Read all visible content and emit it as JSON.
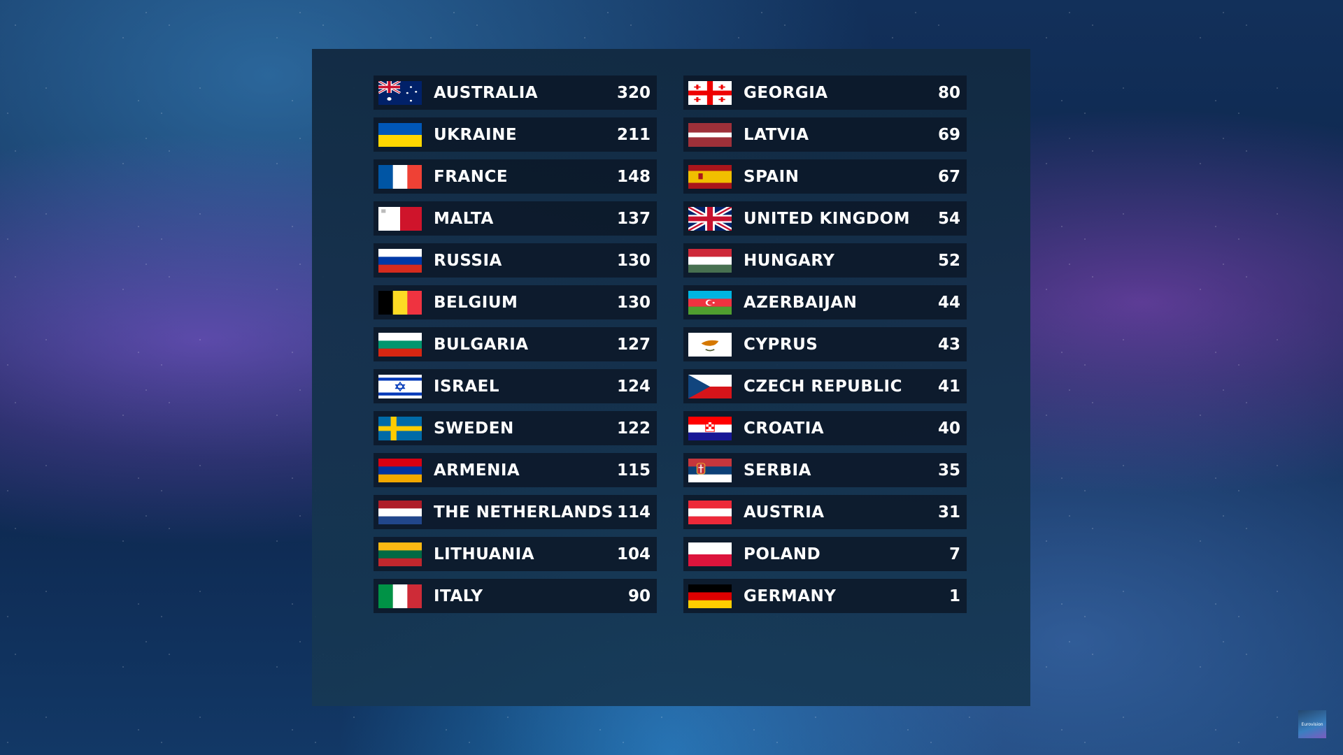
{
  "scoreboard": {
    "left": [
      {
        "country": "AUSTRALIA",
        "points": "320",
        "flag": "australia"
      },
      {
        "country": "UKRAINE",
        "points": "211",
        "flag": "ukraine"
      },
      {
        "country": "FRANCE",
        "points": "148",
        "flag": "france"
      },
      {
        "country": "MALTA",
        "points": "137",
        "flag": "malta"
      },
      {
        "country": "RUSSIA",
        "points": "130",
        "flag": "russia"
      },
      {
        "country": "BELGIUM",
        "points": "130",
        "flag": "belgium"
      },
      {
        "country": "BULGARIA",
        "points": "127",
        "flag": "bulgaria"
      },
      {
        "country": "ISRAEL",
        "points": "124",
        "flag": "israel"
      },
      {
        "country": "SWEDEN",
        "points": "122",
        "flag": "sweden"
      },
      {
        "country": "ARMENIA",
        "points": "115",
        "flag": "armenia"
      },
      {
        "country": "THE NETHERLANDS",
        "points": "114",
        "flag": "netherlands"
      },
      {
        "country": "LITHUANIA",
        "points": "104",
        "flag": "lithuania"
      },
      {
        "country": "ITALY",
        "points": "90",
        "flag": "italy"
      }
    ],
    "right": [
      {
        "country": "GEORGIA",
        "points": "80",
        "flag": "georgia"
      },
      {
        "country": "LATVIA",
        "points": "69",
        "flag": "latvia"
      },
      {
        "country": "SPAIN",
        "points": "67",
        "flag": "spain"
      },
      {
        "country": "UNITED KINGDOM",
        "points": "54",
        "flag": "united-kingdom"
      },
      {
        "country": "HUNGARY",
        "points": "52",
        "flag": "hungary"
      },
      {
        "country": "AZERBAIJAN",
        "points": "44",
        "flag": "azerbaijan"
      },
      {
        "country": "CYPRUS",
        "points": "43",
        "flag": "cyprus"
      },
      {
        "country": "CZECH REPUBLIC",
        "points": "41",
        "flag": "czech-republic"
      },
      {
        "country": "CROATIA",
        "points": "40",
        "flag": "croatia"
      },
      {
        "country": "SERBIA",
        "points": "35",
        "flag": "serbia"
      },
      {
        "country": "AUSTRIA",
        "points": "31",
        "flag": "austria"
      },
      {
        "country": "POLAND",
        "points": "7",
        "flag": "poland"
      },
      {
        "country": "GERMANY",
        "points": "1",
        "flag": "germany"
      }
    ]
  },
  "logo": {
    "text": "Eurovision"
  }
}
